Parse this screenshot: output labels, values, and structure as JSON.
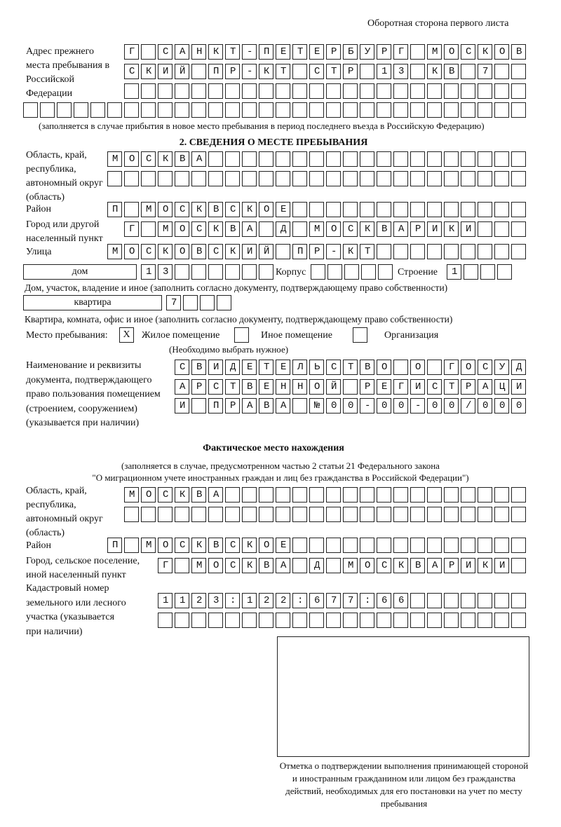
{
  "header": {
    "page_side": "Оборотная сторона первого листа"
  },
  "prev_address": {
    "label": "Адрес прежнего места пребывания в Российской Федерации",
    "rows": [
      "Г САНКТ-ПЕТЕРБУРГ МОСКОВ",
      "СКИЙ ПР-КТ СТР 13 КВ 7  ",
      "                        ",
      "                              "
    ],
    "note": "(заполняется в случае прибытия в новое место пребывания в период последнего въезда в Российскую Федерацию)"
  },
  "section2": {
    "title": "2. СВЕДЕНИЯ О МЕСТЕ ПРЕБЫВАНИЯ",
    "region_label": "Область, край, республика, автономный округ (область)",
    "region_rows": [
      "МОСКВА                   ",
      "                         "
    ],
    "district_label": "Район",
    "district": "П МОСКВСКОЕ              ",
    "city_label": "Город или другой населенный пункт",
    "city": "Г МОСКВА Д МОСКВАРИКИ   ",
    "street_label": "Улица",
    "street": "МОСКОВСКИЙ ПР-КТ         ",
    "house_type": "дом",
    "house_number": "13      ",
    "korpus_label": "Корпус",
    "korpus": "     ",
    "building_label": "Строение",
    "building": "1   ",
    "house_note": "Дом, участок, владение и иное (заполнить согласно документу, подтверждающему право собственности)",
    "apt_type": "квартира",
    "apt_number": "7   ",
    "apt_note": "Квартира, комната, офис и иное (заполнить согласно документу, подтверждающему право собственности)",
    "stay_label": "Место пребывания:",
    "stay_options": [
      {
        "label": "Жилое помещение",
        "mark": "X"
      },
      {
        "label": "Иное помещение",
        "mark": ""
      },
      {
        "label": "Организация",
        "mark": ""
      }
    ],
    "stay_note": "(Необходимо выбрать нужное)",
    "doc_label": "Наименование и реквизиты документа, подтверждающего право пользования помещением (строением, сооружением) (указывается при наличии)",
    "doc_rows": [
      "СВИДЕТЕЛЬСТВО О ГОСУД",
      "АРСТВЕННОЙ РЕГИСТРАЦИ",
      "И ПРАВА №00-00-00/000"
    ]
  },
  "actual": {
    "title": "Фактическое место нахождения",
    "note1": "(заполняется в случае, предусмотренном частью 2 статьи 21 Федерального закона",
    "note2": "\"О миграционном учете иностранных граждан и лиц без гражданства в Российской Федерации\")",
    "region_label": "Область, край, республика, автономный округ (область)",
    "region_rows": [
      "МОСКВА                  ",
      "                        "
    ],
    "district_label": "Район",
    "district": "П МОСКВСКОЕ              ",
    "city_label": "Город, сельское поселение, иной населенный пункт",
    "city": "Г МОСКВА Д МОСКВАРИКИ ",
    "cadastral_label": "Кадастровый номер земельного или лесного участка (указывается при наличии)",
    "cadastral_rows": [
      "1123:122:677:66       ",
      "                      "
    ]
  },
  "stamp": {
    "caption": "Отметка о подтверждении выполнения принимающей стороной и иностранным гражданином или лицом без гражданства действий, необходимых для его постановки на учет по месту пребывания"
  }
}
